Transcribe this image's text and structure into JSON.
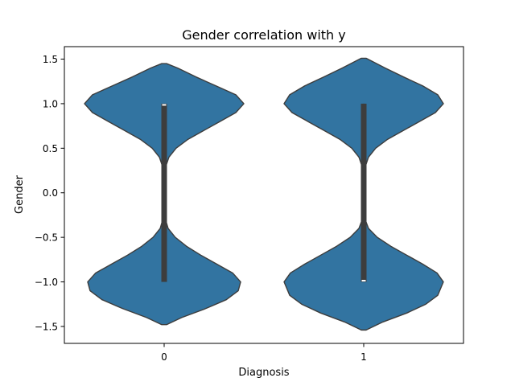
{
  "chart_data": {
    "type": "violin",
    "title": "Gender correlation with y",
    "xlabel": "Diagnosis",
    "ylabel": "Gender",
    "categories": [
      "0",
      "1"
    ],
    "ylim": [
      -1.69,
      1.64
    ],
    "yticks": [
      -1.5,
      -1.0,
      -0.5,
      0.0,
      0.5,
      1.0,
      1.5
    ],
    "ytick_labels": [
      "−1.5",
      "−1.0",
      "−0.5",
      "0.0",
      "0.5",
      "1.0",
      "1.5"
    ],
    "grid": false,
    "fill_color": "#3274a1",
    "edge_color": "#3d3d3d",
    "box_color": "#3d3d3d",
    "median_color": "#ffffff",
    "violins": [
      {
        "category": "0",
        "range": [
          -1.48,
          1.45
        ],
        "box": {
          "q1": -1.0,
          "median": 1.0,
          "q3": 1.0
        },
        "whisker": [
          -1.0,
          1.0
        ],
        "density": [
          [
            -1.48,
            0.03
          ],
          [
            -1.4,
            0.22
          ],
          [
            -1.3,
            0.52
          ],
          [
            -1.2,
            0.78
          ],
          [
            -1.1,
            0.93
          ],
          [
            -1.0,
            0.96
          ],
          [
            -0.9,
            0.86
          ],
          [
            -0.8,
            0.66
          ],
          [
            -0.7,
            0.46
          ],
          [
            -0.6,
            0.28
          ],
          [
            -0.5,
            0.14
          ],
          [
            -0.4,
            0.05
          ],
          [
            -0.3,
            0.017
          ],
          [
            -0.2,
            0.006
          ],
          [
            0.0,
            0.004
          ],
          [
            0.2,
            0.008
          ],
          [
            0.3,
            0.022
          ],
          [
            0.4,
            0.06
          ],
          [
            0.5,
            0.15
          ],
          [
            0.6,
            0.3
          ],
          [
            0.7,
            0.5
          ],
          [
            0.8,
            0.7
          ],
          [
            0.9,
            0.9
          ],
          [
            1.0,
            1.0
          ],
          [
            1.1,
            0.9
          ],
          [
            1.2,
            0.65
          ],
          [
            1.3,
            0.4
          ],
          [
            1.4,
            0.17
          ],
          [
            1.45,
            0.03
          ]
        ]
      },
      {
        "category": "1",
        "range": [
          -1.54,
          1.51
        ],
        "box": {
          "q1": -1.0,
          "median": -1.0,
          "q3": 1.0
        },
        "whisker": [
          -1.0,
          1.0
        ],
        "density": [
          [
            -1.54,
            0.03
          ],
          [
            -1.45,
            0.24
          ],
          [
            -1.35,
            0.54
          ],
          [
            -1.25,
            0.78
          ],
          [
            -1.15,
            0.93
          ],
          [
            -1.0,
            1.0
          ],
          [
            -0.9,
            0.92
          ],
          [
            -0.8,
            0.74
          ],
          [
            -0.7,
            0.54
          ],
          [
            -0.6,
            0.34
          ],
          [
            -0.5,
            0.17
          ],
          [
            -0.4,
            0.06
          ],
          [
            -0.3,
            0.018
          ],
          [
            -0.2,
            0.006
          ],
          [
            0.0,
            0.004
          ],
          [
            0.2,
            0.008
          ],
          [
            0.3,
            0.022
          ],
          [
            0.4,
            0.06
          ],
          [
            0.5,
            0.15
          ],
          [
            0.6,
            0.3
          ],
          [
            0.7,
            0.5
          ],
          [
            0.8,
            0.7
          ],
          [
            0.9,
            0.9
          ],
          [
            1.0,
            1.0
          ],
          [
            1.1,
            0.93
          ],
          [
            1.2,
            0.74
          ],
          [
            1.3,
            0.5
          ],
          [
            1.4,
            0.27
          ],
          [
            1.51,
            0.03
          ]
        ]
      }
    ]
  }
}
